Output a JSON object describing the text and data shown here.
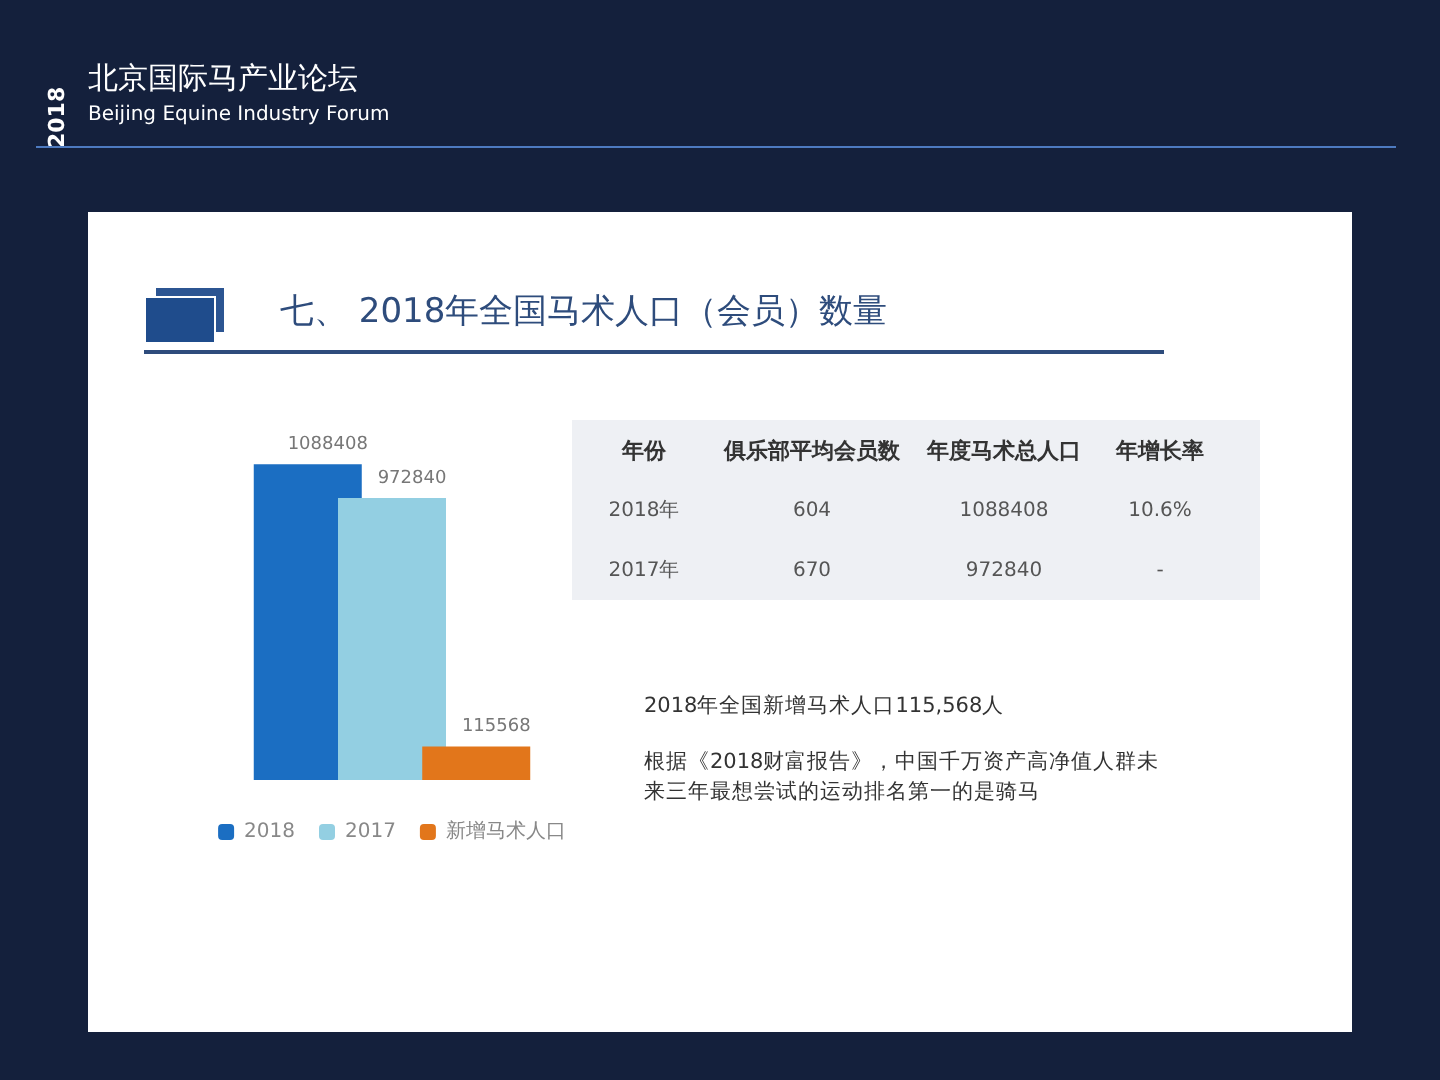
{
  "chart_data": [
    {
      "type": "other",
      "title": "七、 2018年全国马术人口（会员）数量",
      "annotations": [
        "2018",
        "北京国际马产业论坛",
        "Beijing Equine Industry Forum"
      ]
    },
    {
      "type": "bar",
      "categories": [
        null
      ],
      "data_labels": true,
      "legend": "bottom",
      "series": [
        {
          "name": "2018",
          "color": "#1b6ec2",
          "values": [
            1088408
          ]
        },
        {
          "name": "2017",
          "color": "#93cfe2",
          "values": [
            972840
          ]
        },
        {
          "name": "新增马术人口",
          "color": "#e2761b",
          "values": [
            115568
          ]
        }
      ]
    },
    {
      "type": "other",
      "categories": [
        "年份",
        "俱乐部平均会员数",
        "年度马术总人口",
        "年增长率"
      ],
      "y_categories": [
        "2018年",
        "2017年"
      ],
      "cell_labels": [
        [
          "604",
          "1088408",
          "10.6%"
        ],
        [
          "670",
          "972840",
          "-"
        ]
      ],
      "annotations": [
        "2018年全国新增马术人口115,568人",
        "根据《2018财富报告》，中国千万资产高净值人群未来三年最想尝试的运动排名第一的是骑马"
      ]
    }
  ]
}
